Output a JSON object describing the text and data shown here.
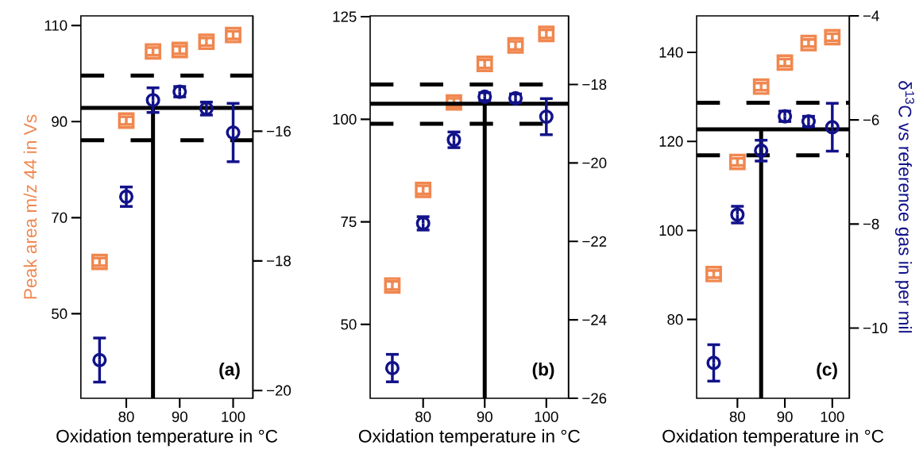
{
  "chart_data": [
    {
      "type": "scatter",
      "xlabel": "Oxidation temperature in °C",
      "ylabel": "Peak area m/z 44 in Vs",
      "x": [
        75,
        80,
        85,
        90,
        95,
        100
      ],
      "xlim": [
        71.5,
        103.7
      ],
      "xticks": [
        80,
        90,
        100
      ],
      "ylim": [
        32.4,
        112
      ],
      "yticks": [
        50,
        70,
        90,
        110
      ],
      "y2lim": [
        -20.12,
        -14.22
      ],
      "y2ticks": [
        {
          "value": -16,
          "label": "−16"
        },
        {
          "value": -18,
          "label": "−18"
        },
        {
          "value": -20,
          "label": "−20"
        }
      ],
      "series": [
        {
          "color": "#f0874f",
          "marker": "square",
          "values": [
            60.8,
            90.2,
            104.6,
            104.9,
            106.6,
            108.0
          ],
          "errors": [
            0.8,
            0.8,
            0.8,
            0.8,
            0.8,
            0.8
          ]
        },
        {
          "color": "#12128a",
          "marker": "circle",
          "axis": "y2",
          "values": [
            -19.53,
            -17.01,
            -15.52,
            -15.39,
            -15.65,
            -16.02
          ],
          "errors": [
            0.34,
            0.15,
            0.19,
            0.08,
            0.1,
            0.45
          ]
        }
      ],
      "ref_lines": [
        {
          "axis": "y2",
          "value": -15.64,
          "color": "#000000",
          "line_style": "solid"
        },
        {
          "axis": "y2",
          "value": -15.14,
          "color": "#000000",
          "line_style": "dashed"
        },
        {
          "axis": "y2",
          "value": -16.14,
          "color": "#000000",
          "line_style": "dashed"
        },
        {
          "axis": "x",
          "value": 85,
          "color": "#000000",
          "line_style": "solid"
        }
      ],
      "annotations": [
        "(a)"
      ]
    },
    {
      "type": "scatter",
      "xlabel": "Oxidation temperature in °C",
      "x": [
        75,
        80,
        85,
        90,
        95,
        100
      ],
      "xlim": [
        71.4,
        103.6
      ],
      "xticks": [
        80,
        90,
        100
      ],
      "ylim": [
        32.0,
        125.2
      ],
      "yticks": [
        50,
        75,
        100,
        125
      ],
      "y2lim": [
        -26,
        -16.25
      ],
      "y2ticks": [
        {
          "value": -18,
          "label": "−18"
        },
        {
          "value": -20,
          "label": "−20"
        },
        {
          "value": -22,
          "label": "−22"
        },
        {
          "value": -24,
          "label": "−24"
        },
        {
          "value": -26,
          "label": "−26"
        }
      ],
      "series": [
        {
          "color": "#f0874f",
          "marker": "square",
          "values": [
            59.5,
            82.8,
            104.1,
            113.5,
            118.0,
            120.8
          ],
          "errors": [
            1,
            1,
            1,
            1,
            1,
            1
          ]
        },
        {
          "color": "#12128a",
          "marker": "circle",
          "axis": "y2",
          "values": [
            -25.23,
            -21.54,
            -19.41,
            -18.31,
            -18.35,
            -18.82
          ],
          "errors": [
            0.35,
            0.17,
            0.2,
            0.1,
            0.11,
            0.46
          ]
        }
      ],
      "ref_lines": [
        {
          "axis": "y2",
          "value": -18.49,
          "color": "#000000",
          "line_style": "solid"
        },
        {
          "axis": "y2",
          "value": -18.0,
          "color": "#000000",
          "line_style": "dashed"
        },
        {
          "axis": "y2",
          "value": -19.0,
          "color": "#000000",
          "line_style": "dashed"
        },
        {
          "axis": "x",
          "value": 90,
          "color": "#000000",
          "line_style": "solid"
        }
      ],
      "annotations": [
        "(b)"
      ]
    },
    {
      "type": "scatter",
      "xlabel": "Oxidation temperature in °C",
      "y2label": "δ$^{13}$C vs reference gas in per mil",
      "x": [
        75,
        80,
        85,
        90,
        95,
        100
      ],
      "xlim": [
        71.4,
        103.6
      ],
      "xticks": [
        80,
        90,
        100
      ],
      "ylim": [
        62.3,
        148.2
      ],
      "yticks": [
        80,
        100,
        120,
        140
      ],
      "y2lim": [
        -11.35,
        -4
      ],
      "y2ticks": [
        {
          "value": -4,
          "label": "−4"
        },
        {
          "value": -6,
          "label": "−6"
        },
        {
          "value": -8,
          "label": "−8"
        },
        {
          "value": -10,
          "label": "−10"
        }
      ],
      "series": [
        {
          "color": "#f0874f",
          "marker": "square",
          "values": [
            90.2,
            115.4,
            132.3,
            137.7,
            142.1,
            143.4
          ],
          "errors": [
            0.8,
            0.8,
            0.8,
            0.8,
            0.8,
            0.8
          ]
        },
        {
          "color": "#12128a",
          "marker": "circle",
          "axis": "y2",
          "values": [
            -10.67,
            -7.82,
            -6.59,
            -5.93,
            -6.03,
            -6.14
          ],
          "errors": [
            0.35,
            0.16,
            0.2,
            0.1,
            0.1,
            0.46
          ]
        }
      ],
      "ref_lines": [
        {
          "axis": "y2",
          "value": -6.18,
          "color": "#000000",
          "line_style": "solid"
        },
        {
          "axis": "y2",
          "value": -5.67,
          "color": "#000000",
          "line_style": "dashed"
        },
        {
          "axis": "y2",
          "value": -6.68,
          "color": "#000000",
          "line_style": "dashed"
        },
        {
          "axis": "x",
          "value": 85,
          "color": "#000000",
          "line_style": "solid"
        }
      ],
      "annotations": [
        "(c)"
      ]
    }
  ]
}
